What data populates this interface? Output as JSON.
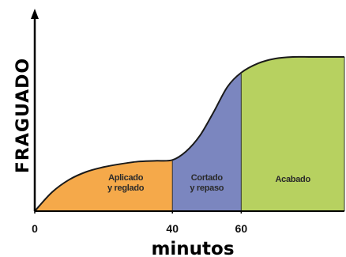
{
  "chart_data": {
    "type": "area",
    "title": "",
    "xlabel": "minutos",
    "ylabel": "FRAGUADO",
    "xlim": [
      0,
      90
    ],
    "ylim": [
      0,
      100
    ],
    "x_ticks": [
      {
        "value": 0,
        "label": "0"
      },
      {
        "value": 40,
        "label": "40"
      },
      {
        "value": 60,
        "label": "60"
      }
    ],
    "grid": false,
    "legend": "none",
    "curve": {
      "x": [
        0,
        5,
        10,
        15,
        20,
        25,
        30,
        35,
        40,
        44,
        48,
        52,
        56,
        60,
        65,
        70,
        75,
        80,
        85,
        90
      ],
      "y": [
        0,
        12,
        20,
        25,
        28,
        30,
        31.5,
        32,
        32.5,
        38,
        48,
        63,
        79,
        88,
        94,
        97,
        98,
        98,
        98,
        98
      ]
    },
    "regions": [
      {
        "label_lines": [
          "Aplicado",
          "y reglado"
        ],
        "x_start": 0,
        "x_end": 40,
        "color": "#F5A94A"
      },
      {
        "label_lines": [
          "Cortado",
          "y repaso"
        ],
        "x_start": 40,
        "x_end": 60,
        "color": "#7B86BF"
      },
      {
        "label_lines": [
          "Acabado"
        ],
        "x_start": 60,
        "x_end": 90,
        "color": "#B7D160"
      }
    ]
  }
}
